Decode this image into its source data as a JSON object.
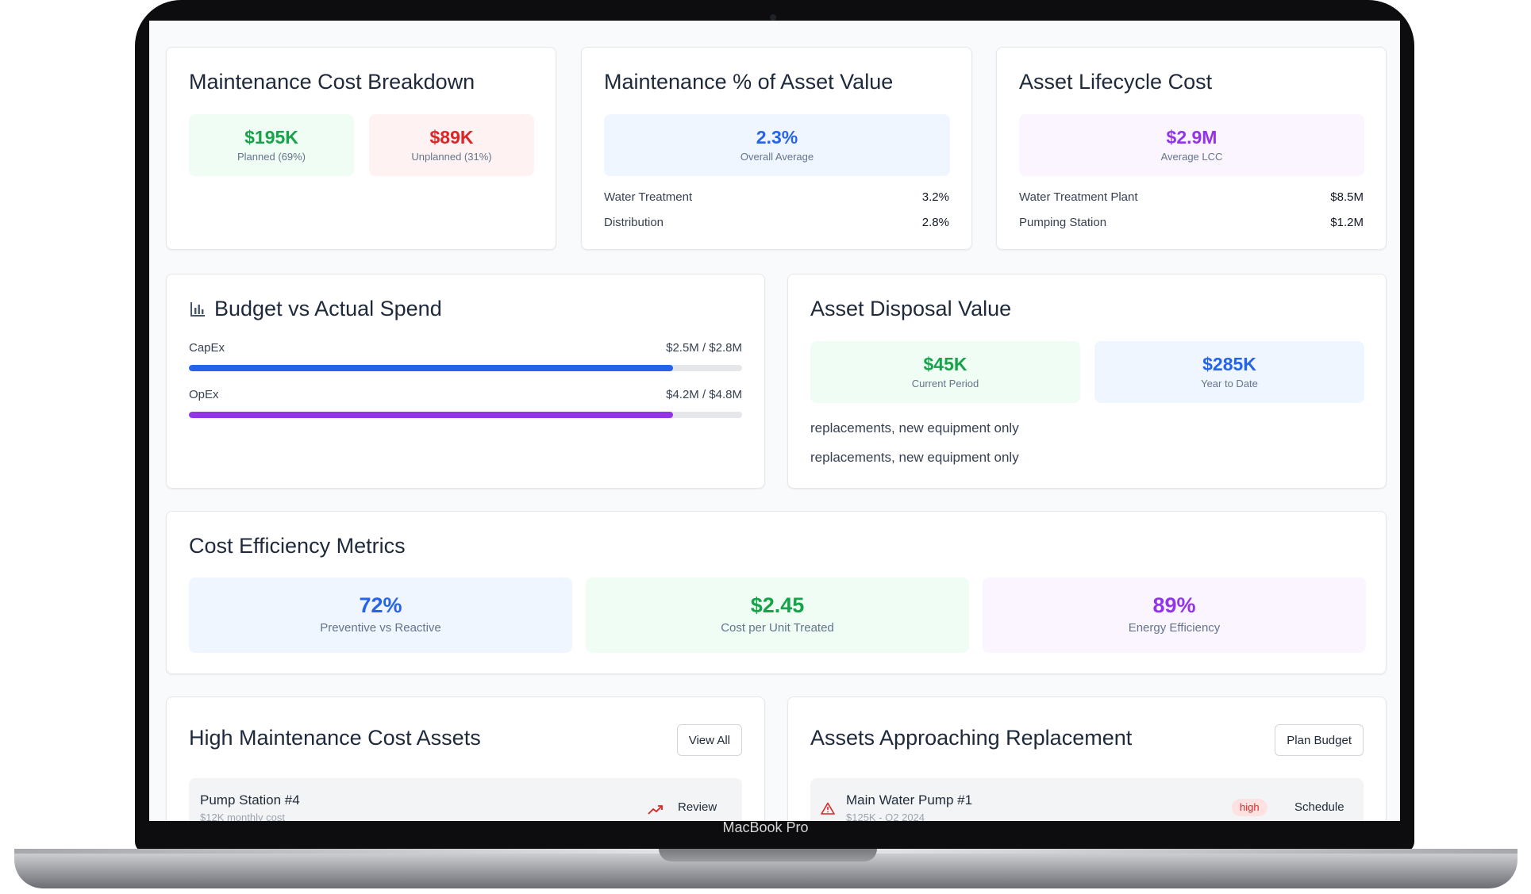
{
  "device": {
    "label": "MacBook Pro"
  },
  "colors": {
    "green": "#16a34a",
    "red": "#dc2626",
    "blue": "#2563eb",
    "purple": "#9333ea"
  },
  "maintenance_cost": {
    "title": "Maintenance Cost Breakdown",
    "planned": {
      "value": "$195K",
      "label": "Planned (69%)"
    },
    "unplanned": {
      "value": "$89K",
      "label": "Unplanned (31%)"
    }
  },
  "maintenance_pct": {
    "title": "Maintenance % of Asset Value",
    "overall": {
      "value": "2.3%",
      "label": "Overall Average"
    },
    "rows": [
      {
        "label": "Water Treatment",
        "value": "3.2%"
      },
      {
        "label": "Distribution",
        "value": "2.8%"
      }
    ]
  },
  "lifecycle": {
    "title": "Asset Lifecycle Cost",
    "average": {
      "value": "$2.9M",
      "label": "Average LCC"
    },
    "rows": [
      {
        "label": "Water Treatment Plant",
        "value": "$8.5M"
      },
      {
        "label": "Pumping Station",
        "value": "$1.2M"
      }
    ]
  },
  "budget": {
    "title": "Budget vs Actual Spend",
    "icon": "bar-chart-icon",
    "capex": {
      "label": "CapEx",
      "value_text": "$2.5M / $2.8M",
      "fraction": 0.875
    },
    "opex": {
      "label": "OpEx",
      "value_text": "$4.2M / $4.8M",
      "fraction": 0.875
    }
  },
  "disposal": {
    "title": "Asset Disposal Value",
    "current": {
      "value": "$45K",
      "label": "Current Period"
    },
    "ytd": {
      "value": "$285K",
      "label": "Year to Date"
    },
    "notes": [
      "replacements, new equipment only",
      "replacements, new equipment only"
    ]
  },
  "efficiency": {
    "title": "Cost Efficiency Metrics",
    "metrics": [
      {
        "value": "72%",
        "label": "Preventive vs Reactive"
      },
      {
        "value": "$2.45",
        "label": "Cost per Unit Treated"
      },
      {
        "value": "89%",
        "label": "Energy Efficiency"
      }
    ]
  },
  "high_cost": {
    "title": "High Maintenance Cost Assets",
    "button": "View All",
    "item": {
      "name": "Pump Station #4",
      "sub": "$12K monthly cost",
      "icon": "trending-up-icon",
      "action": "Review"
    }
  },
  "replacement": {
    "title": "Assets Approaching Replacement",
    "button": "Plan Budget",
    "item": {
      "name": "Main Water Pump #1",
      "sub": "$125K - Q2 2024",
      "icon": "alert-triangle-icon",
      "badge": "high",
      "action": "Schedule"
    }
  }
}
